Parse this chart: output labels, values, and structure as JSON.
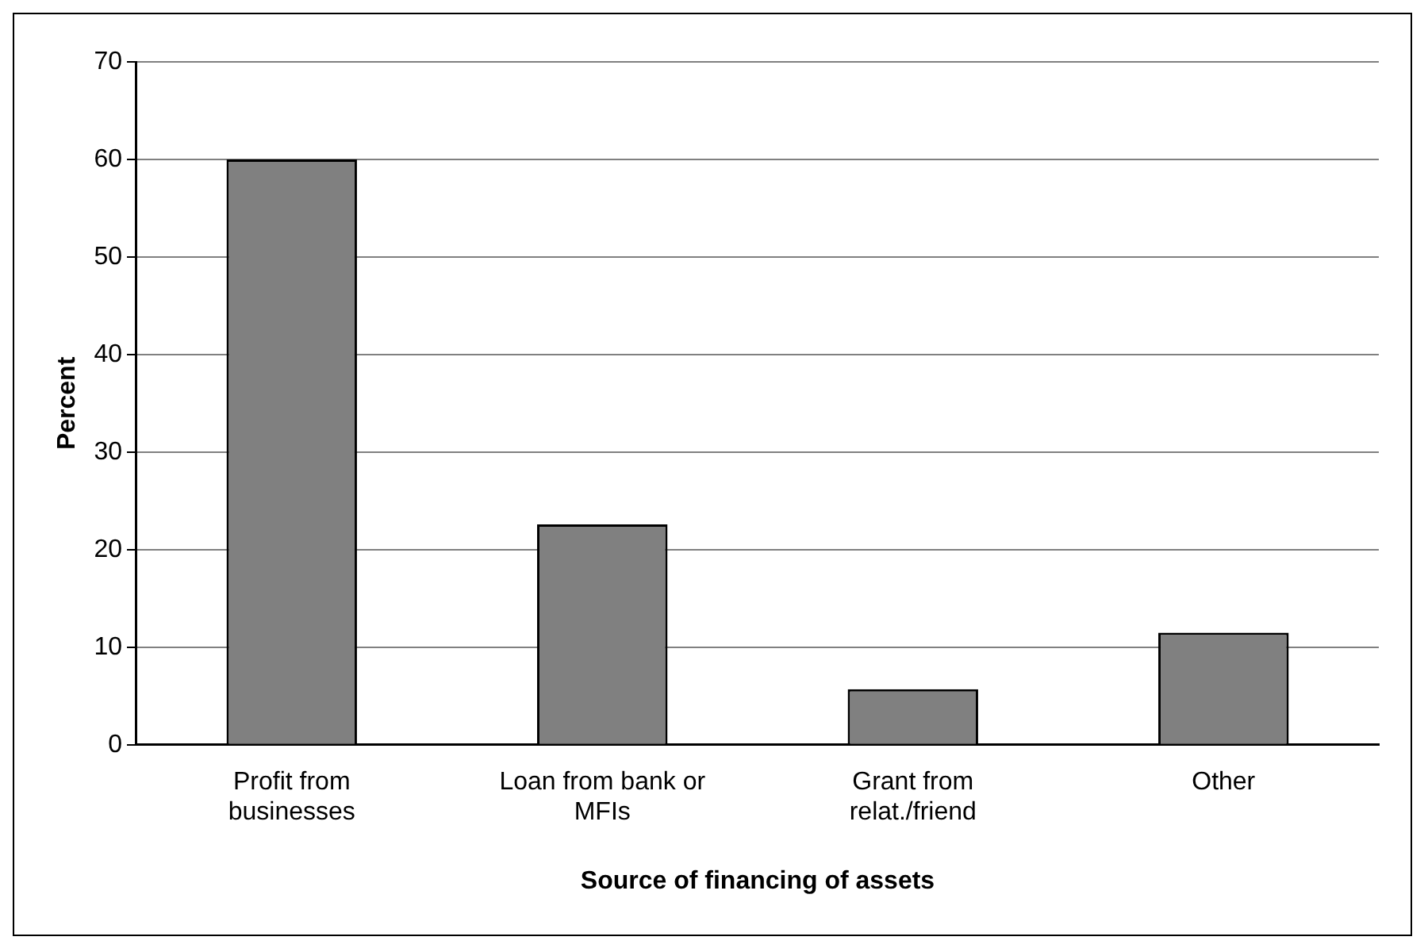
{
  "chart_data": {
    "type": "bar",
    "xlabel": "Source of financing of assets",
    "ylabel": "Percent",
    "categories": [
      "Profit from businesses",
      "Loan from bank or MFIs",
      "Grant from relat./friend",
      "Other"
    ],
    "values": [
      60,
      22.6,
      5.7,
      11.5
    ],
    "color": "#808080",
    "ylim": [
      0,
      70
    ],
    "yticks": [
      0,
      10,
      20,
      30,
      40,
      50,
      60,
      70
    ],
    "grid": "y",
    "legend": false
  }
}
